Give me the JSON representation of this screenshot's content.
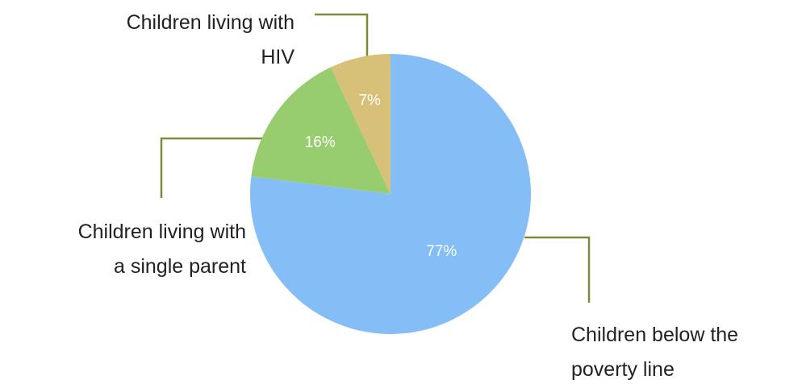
{
  "chart_data": {
    "type": "pie",
    "categories": [
      [
        "Children below the",
        "poverty line"
      ],
      [
        "Children living with",
        "a single parent"
      ],
      [
        "Children living with",
        "HIV"
      ]
    ],
    "values": [
      77,
      16,
      7
    ],
    "value_labels": [
      "77%",
      "16%",
      "7%"
    ],
    "colors": [
      "#85bdf7",
      "#97cd6f",
      "#d7c077"
    ]
  }
}
